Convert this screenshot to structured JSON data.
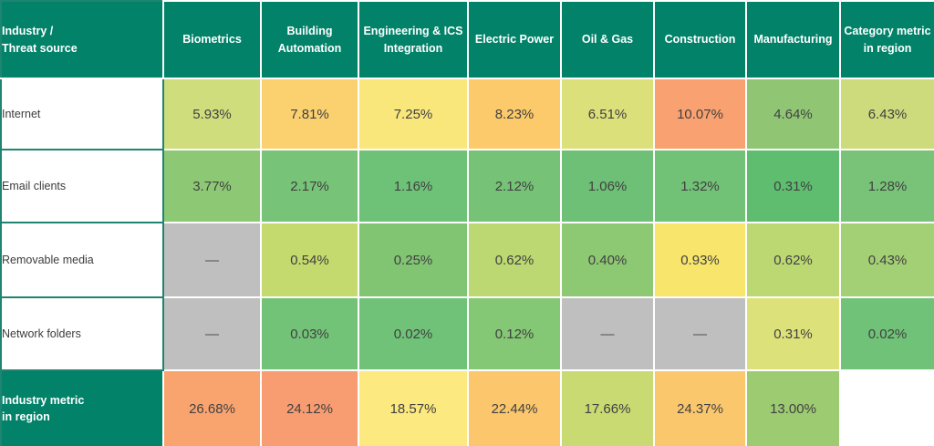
{
  "colors": {
    "header_bg": "#028269",
    "header_border": "#1f8470",
    "na_bg": "#bfbfbf",
    "value_text": "#414141",
    "header_text": "#ffffff"
  },
  "chart_data": {
    "type": "heatmap",
    "corner_label": "Industry /\nThreat source",
    "columns": [
      "Biometrics",
      "Building\nAutomation",
      "Engineering & ICS\nIntegration",
      "Electric Power",
      "Oil & Gas",
      "Construction",
      "Manufacturing",
      "Category metric\nin region"
    ],
    "rows": [
      {
        "label": "Internet",
        "is_header": false,
        "cells": [
          {
            "v": "5.93%",
            "c": "#cfdd7c"
          },
          {
            "v": "7.81%",
            "c": "#fbd170"
          },
          {
            "v": "7.25%",
            "c": "#f9e77c"
          },
          {
            "v": "8.23%",
            "c": "#fcca6b"
          },
          {
            "v": "6.51%",
            "c": "#dce07a"
          },
          {
            "v": "10.07%",
            "c": "#f9a170"
          },
          {
            "v": "4.64%",
            "c": "#90c673"
          },
          {
            "v": "6.43%",
            "c": "#cedb7c"
          }
        ]
      },
      {
        "label": "Email clients",
        "is_header": false,
        "cells": [
          {
            "v": "3.77%",
            "c": "#8dc974"
          },
          {
            "v": "2.17%",
            "c": "#77c377"
          },
          {
            "v": "1.16%",
            "c": "#6ec277"
          },
          {
            "v": "2.12%",
            "c": "#76c377"
          },
          {
            "v": "1.06%",
            "c": "#6ec076"
          },
          {
            "v": "1.32%",
            "c": "#71c177"
          },
          {
            "v": "0.31%",
            "c": "#5ebd6f"
          },
          {
            "v": "1.28%",
            "c": "#78c378"
          }
        ]
      },
      {
        "label": "Removable media",
        "is_header": false,
        "cells": [
          {
            "v": "—",
            "c": "#bfbfbf"
          },
          {
            "v": "0.54%",
            "c": "#c5da6e"
          },
          {
            "v": "0.25%",
            "c": "#81c573"
          },
          {
            "v": "0.62%",
            "c": "#bcd872"
          },
          {
            "v": "0.40%",
            "c": "#8dc873"
          },
          {
            "v": "0.93%",
            "c": "#f8e56c"
          },
          {
            "v": "0.62%",
            "c": "#bcd872"
          },
          {
            "v": "0.43%",
            "c": "#a4d075"
          }
        ]
      },
      {
        "label": "Network folders",
        "is_header": false,
        "cells": [
          {
            "v": "—",
            "c": "#bfbfbf"
          },
          {
            "v": "0.03%",
            "c": "#72c377"
          },
          {
            "v": "0.02%",
            "c": "#6fc277"
          },
          {
            "v": "0.12%",
            "c": "#84c775"
          },
          {
            "v": "—",
            "c": "#bfbfbf"
          },
          {
            "v": "—",
            "c": "#bfbfbf"
          },
          {
            "v": "0.31%",
            "c": "#dde17a"
          },
          {
            "v": "0.02%",
            "c": "#6fc277"
          }
        ]
      },
      {
        "label": "Industry metric\nin region",
        "is_header": true,
        "cells": [
          {
            "v": "26.68%",
            "c": "#f9a46f"
          },
          {
            "v": "24.12%",
            "c": "#f89d71"
          },
          {
            "v": "18.57%",
            "c": "#fce97f"
          },
          {
            "v": "22.44%",
            "c": "#fbc66c"
          },
          {
            "v": "17.66%",
            "c": "#c9da72"
          },
          {
            "v": "24.37%",
            "c": "#fbc76d"
          },
          {
            "v": "13.00%",
            "c": "#9ccb72"
          },
          {
            "v": "",
            "c": "#ffffff"
          }
        ]
      }
    ]
  }
}
